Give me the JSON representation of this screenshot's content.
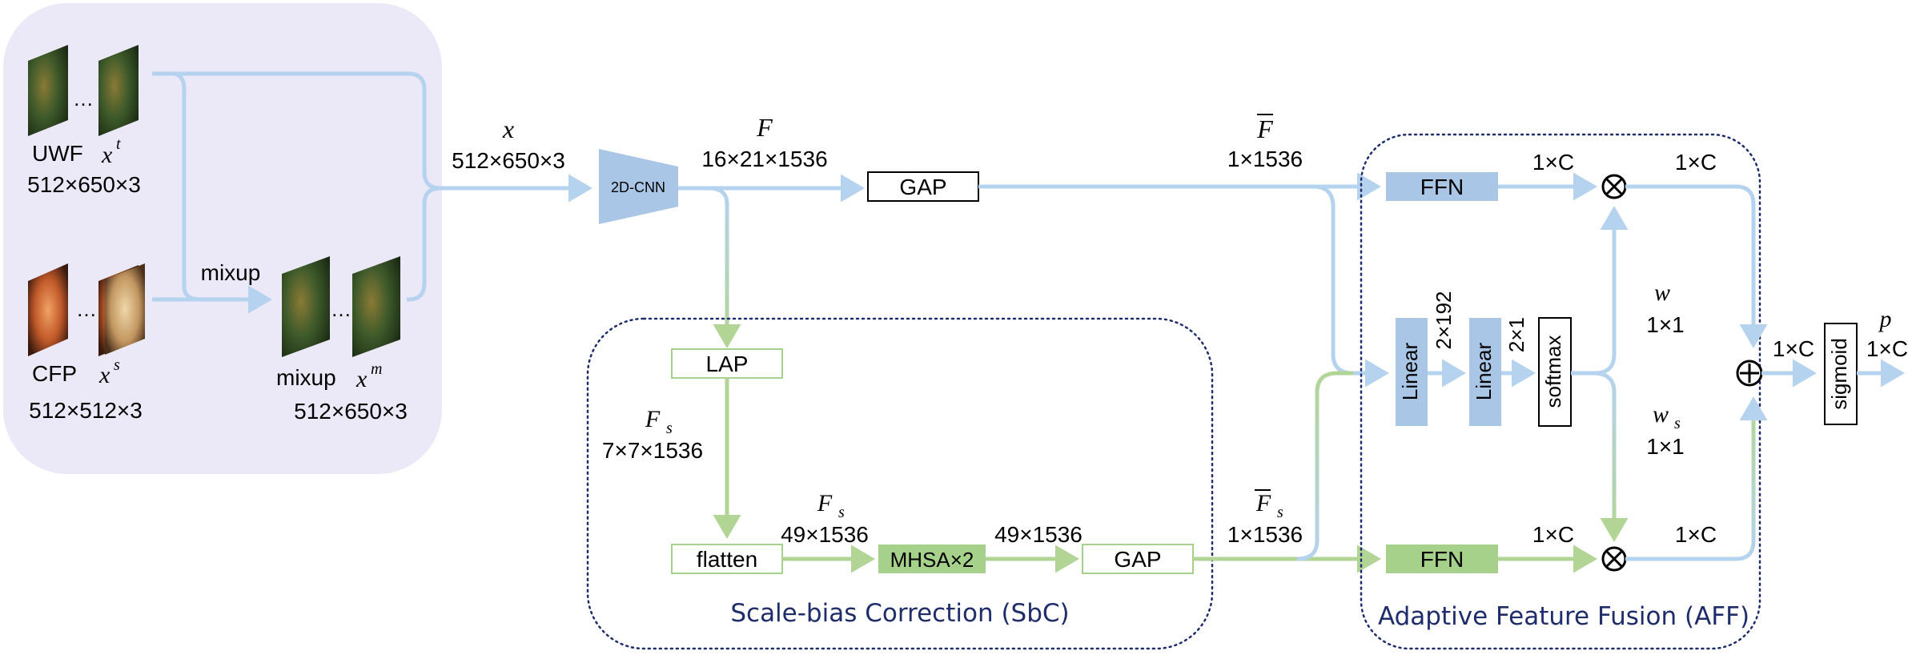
{
  "input_panel": {
    "uwf": {
      "label": "UWF",
      "symbol": "x",
      "sup": "t",
      "dims": "512×650×3"
    },
    "cfp": {
      "label": "CFP",
      "symbol": "x",
      "sup": "s",
      "dims": "512×512×3"
    },
    "mixup_edge_label": "mixup",
    "mixup": {
      "label": "mixup",
      "symbol": "x",
      "sup": "m",
      "dims": "512×650×3"
    },
    "ellipsis": "…"
  },
  "x_label": {
    "symbol": "x",
    "dims": "512×650×3"
  },
  "cnn_label": "2D-CNN",
  "f_label": {
    "symbol": "F",
    "dims": "16×21×1536"
  },
  "gap_top": "GAP",
  "fbar_label": {
    "symbol": "F",
    "dims": "1×1536"
  },
  "sbc": {
    "title": "Scale-bias Correction (SbC)",
    "lap": "LAP",
    "fs1": {
      "symbol": "F",
      "sub": "s",
      "dims": "7×7×1536"
    },
    "flatten": "flatten",
    "fs2": {
      "symbol": "F",
      "sub": "s",
      "dims": "49×1536"
    },
    "mhsa": "MHSA×2",
    "mhsa_out": "49×1536",
    "gap": "GAP"
  },
  "fsbar_label": {
    "symbol": "F",
    "sub": "s",
    "dims": "1×1536"
  },
  "aff": {
    "title": "Adaptive Feature Fusion (AFF)",
    "ffn_top": "FFN",
    "ffn_bottom": "FFN",
    "linear1": "Linear",
    "linear2": "Linear",
    "softmax": "softmax",
    "dim_2x192": "2×192",
    "dim_2x1": "2×1",
    "ffn_top_out": "1×C",
    "mult_top_out": "1×C",
    "ffn_bottom_out": "1×C",
    "mult_bottom_out": "1×C",
    "w": {
      "symbol": "w",
      "dims": "1×1"
    },
    "ws": {
      "symbol": "w",
      "sub": "s",
      "dims": "1×1"
    }
  },
  "sum_out": "1×C",
  "sigmoid": "sigmoid",
  "p_label": {
    "symbol": "p",
    "dims": "1×C"
  },
  "colors": {
    "panel_bg": "#ebe8f7",
    "blue_arrow": "#b5d3ef",
    "green_arrow": "#b2d596",
    "blue_block": "#a9c6e6",
    "green_block": "#a6d18a",
    "caption": "#1f2d6b"
  }
}
